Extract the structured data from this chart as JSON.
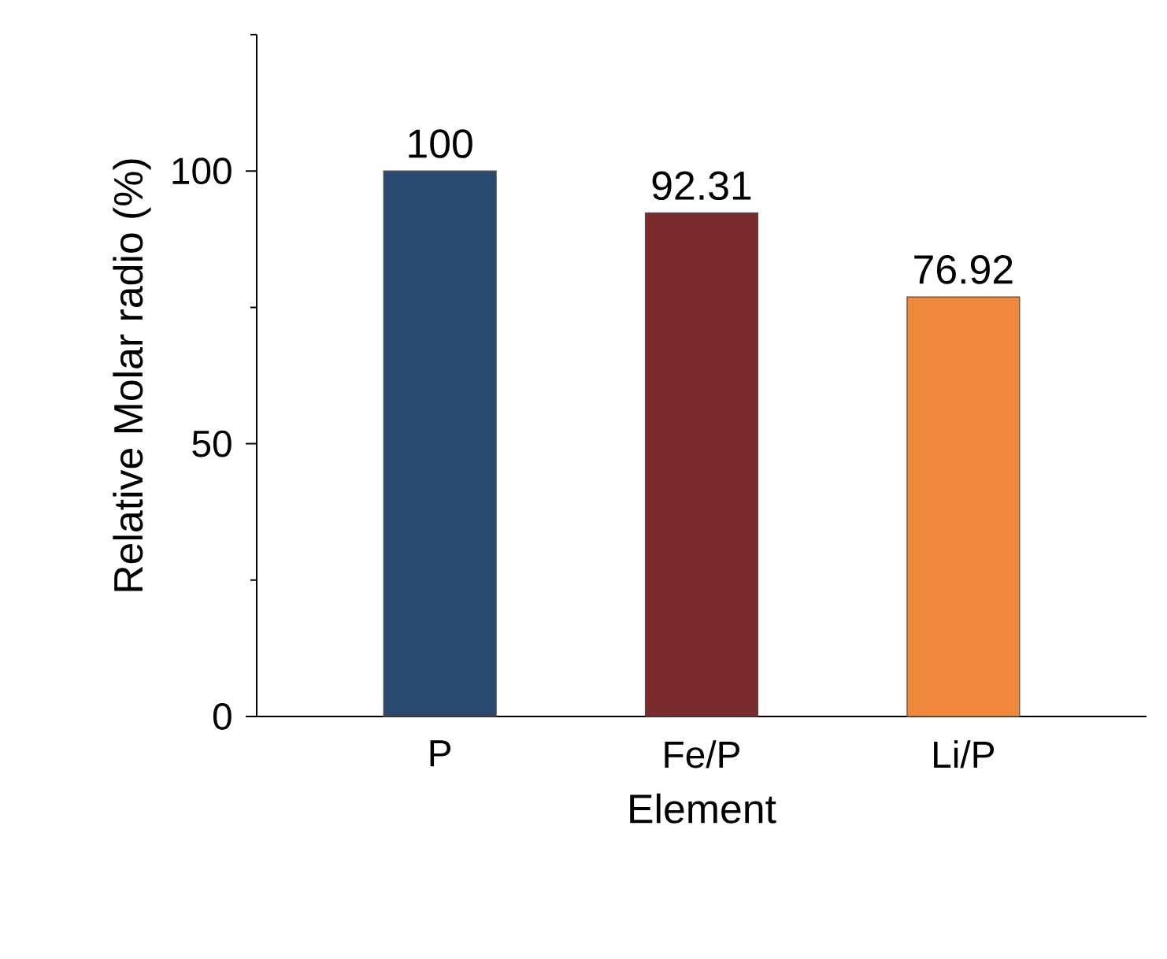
{
  "chart_data": {
    "type": "bar",
    "xlabel": "Element",
    "ylabel": "Relative Molar radio (%)",
    "categories": [
      "P",
      "Fe/P",
      "Li/P"
    ],
    "values": [
      100,
      92.31,
      76.92
    ],
    "colors": [
      "#2b4a70",
      "#7a2c2c",
      "#f0883c"
    ],
    "ylim": [
      0,
      125
    ],
    "yticks": [
      0,
      {
        "value": 25,
        "label": null
      },
      50,
      {
        "value": 75,
        "label": null
      },
      100,
      {
        "value": 125,
        "label": null
      }
    ],
    "data_labels": true
  }
}
